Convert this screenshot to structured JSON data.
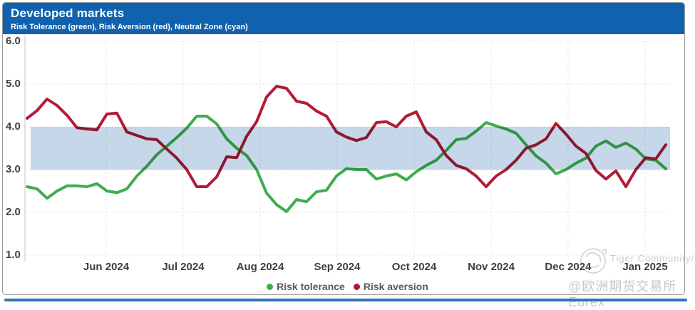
{
  "header": {
    "title": "Developed markets",
    "subtitle": "Risk Tolerance (green), Risk Aversion (red), Neutral Zone (cyan)",
    "background": "#1162ae"
  },
  "legend": [
    {
      "label": "Risk tolerance",
      "color": "#3fad4d"
    },
    {
      "label": "Risk aversion",
      "color": "#a61b33"
    }
  ],
  "watermark": {
    "community": "Tiger Community/",
    "account": "@欧洲期货交易所Eurex"
  },
  "colors": {
    "header_blue": "#1162ae",
    "bottom_strip_blue": "#2e74b5",
    "neutral_zone_cyan": "#c5d7e8",
    "risk_tolerance_green": "#3fad4d",
    "risk_aversion_red": "#b21c34",
    "grid_gray": "#d9d9d9",
    "tick_text": "#3f3f3f"
  },
  "chart_data": {
    "type": "line",
    "title": "Developed markets",
    "subtitle": "Risk Tolerance (green), Risk Aversion (red), Neutral Zone (cyan)",
    "ylim": [
      1.0,
      6.0
    ],
    "y_ticks": [
      "6.0",
      "5.0",
      "4.0",
      "3.0",
      "2.0",
      "1.0"
    ],
    "x_ticks": [
      "Jun 2024",
      "Jul 2024",
      "Aug 2024",
      "Sep 2024",
      "Oct 2024",
      "Nov 2024",
      "Dec 2024",
      "Jan 2025"
    ],
    "grid": "dotted",
    "legend_position": "bottom",
    "neutral_zone": {
      "label": "Neutral Zone (cyan)",
      "from": 3.0,
      "to": 4.0,
      "color": "#c5d7e8"
    },
    "x": [
      "2024-05-15",
      "2024-05-19",
      "2024-05-23",
      "2024-05-27",
      "2024-05-31",
      "2024-06-04",
      "2024-06-08",
      "2024-06-12",
      "2024-06-16",
      "2024-06-20",
      "2024-06-24",
      "2024-06-28",
      "2024-07-02",
      "2024-07-06",
      "2024-07-10",
      "2024-07-14",
      "2024-07-18",
      "2024-07-22",
      "2024-07-26",
      "2024-07-30",
      "2024-08-03",
      "2024-08-07",
      "2024-08-11",
      "2024-08-15",
      "2024-08-19",
      "2024-08-23",
      "2024-08-27",
      "2024-08-31",
      "2024-09-04",
      "2024-09-08",
      "2024-09-12",
      "2024-09-16",
      "2024-09-20",
      "2024-09-24",
      "2024-09-28",
      "2024-10-02",
      "2024-10-06",
      "2024-10-10",
      "2024-10-14",
      "2024-10-18",
      "2024-10-22",
      "2024-10-26",
      "2024-10-30",
      "2024-11-03",
      "2024-11-07",
      "2024-11-11",
      "2024-11-15",
      "2024-11-19",
      "2024-11-23",
      "2024-11-27",
      "2024-12-01",
      "2024-12-05",
      "2024-12-09",
      "2024-12-13",
      "2024-12-17",
      "2024-12-21",
      "2024-12-25",
      "2024-12-29",
      "2025-01-02",
      "2025-01-06",
      "2025-01-10",
      "2025-01-14",
      "2025-01-18",
      "2025-01-22",
      "2025-01-26"
    ],
    "series": [
      {
        "name": "Risk tolerance",
        "color": "#3fad4d",
        "values": [
          2.6,
          2.55,
          2.33,
          2.5,
          2.62,
          2.62,
          2.6,
          2.67,
          2.5,
          2.46,
          2.55,
          2.85,
          3.08,
          3.35,
          3.55,
          3.75,
          3.97,
          4.25,
          4.25,
          4.07,
          3.72,
          3.5,
          3.33,
          3.0,
          2.45,
          2.18,
          2.02,
          2.3,
          2.25,
          2.48,
          2.52,
          2.85,
          3.02,
          3.0,
          3.0,
          2.78,
          2.85,
          2.9,
          2.76,
          2.95,
          3.1,
          3.22,
          3.45,
          3.7,
          3.73,
          3.9,
          4.1,
          4.02,
          3.95,
          3.85,
          3.58,
          3.32,
          3.15,
          2.9,
          3.0,
          3.15,
          3.27,
          3.55,
          3.67,
          3.52,
          3.62,
          3.48,
          3.25,
          3.22,
          3.02
        ]
      },
      {
        "name": "Risk aversion",
        "color": "#b21c34",
        "values": [
          4.2,
          4.38,
          4.65,
          4.5,
          4.27,
          3.98,
          3.95,
          3.93,
          4.3,
          4.32,
          3.88,
          3.8,
          3.72,
          3.7,
          3.48,
          3.27,
          3.0,
          2.6,
          2.6,
          2.83,
          3.3,
          3.28,
          3.78,
          4.12,
          4.7,
          4.95,
          4.9,
          4.6,
          4.55,
          4.37,
          4.25,
          3.88,
          3.76,
          3.68,
          3.75,
          4.1,
          4.12,
          4.0,
          4.25,
          4.35,
          3.88,
          3.7,
          3.33,
          3.1,
          3.02,
          2.85,
          2.6,
          2.85,
          3.0,
          3.22,
          3.5,
          3.58,
          3.72,
          4.08,
          3.83,
          3.55,
          3.38,
          2.98,
          2.78,
          2.97,
          2.6,
          3.0,
          3.28,
          3.25,
          3.58
        ]
      }
    ]
  }
}
